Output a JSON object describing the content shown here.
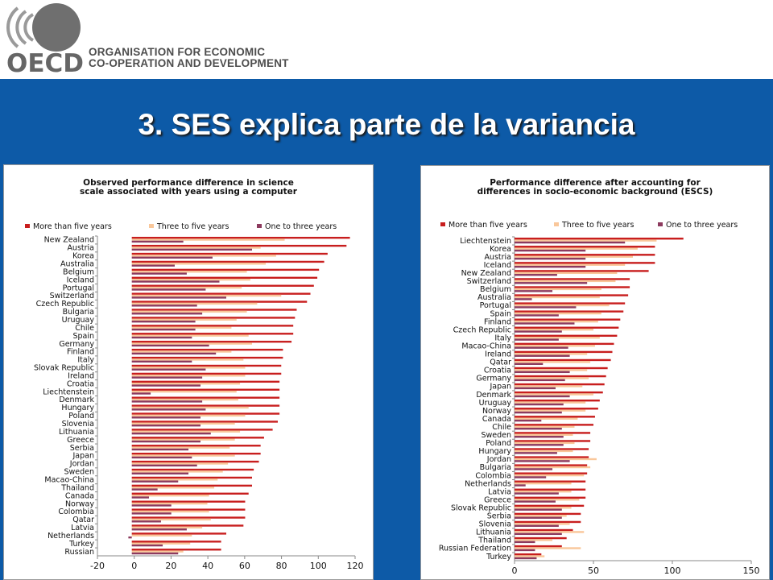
{
  "header": {
    "logo_text": "OECD",
    "org_line1": "ORGANISATION FOR ECONOMIC",
    "org_line2": "CO-OPERATION AND DEVELOPMENT"
  },
  "slide": {
    "title": "3. SES explica parte de la variancia"
  },
  "colors": {
    "more_than_five": "#c81e1e",
    "three_to_five": "#f9c79a",
    "one_to_three": "#8c3a5e",
    "slide_blue": "#0d5aa7"
  },
  "chart_data": [
    {
      "type": "bar",
      "orientation": "horizontal",
      "title_line1": "Observed performance difference in science",
      "title_line2": "scale associated with years using a computer",
      "legend_position": "top",
      "xlim": [
        -20,
        130
      ],
      "xticks": [
        "-20",
        "0",
        "20",
        "40",
        "60",
        "80",
        "100",
        "120"
      ],
      "grid": false,
      "categories": [
        "New Zealand",
        "Austria",
        "Korea",
        "Australia",
        "Belgium",
        "Iceland",
        "Portugal",
        "Switzerland",
        "Czech Republic",
        "Bulgaria",
        "Uruguay",
        "Chile",
        "Spain",
        "Germany",
        "Finland",
        "Italy",
        "Slovak Republic",
        "Ireland",
        "Croatia",
        "Liechtenstein",
        "Denmark",
        "Hungary",
        "Poland",
        "Slovenia",
        "Lithuania",
        "Greece",
        "Serbia",
        "Japan",
        "Jordan",
        "Sweden",
        "Macao-China",
        "Thailand",
        "Canada",
        "Norway",
        "Colombia",
        "Qatar",
        "Latvia",
        "Netherlands",
        "Turkey",
        "Russian"
      ],
      "series": [
        {
          "name": "More than five years",
          "values": [
            127,
            125,
            114,
            112,
            109,
            108,
            106,
            104,
            102,
            96,
            95,
            94,
            94,
            93,
            88,
            88,
            87,
            87,
            86,
            86,
            86,
            86,
            86,
            85,
            82,
            77,
            75,
            75,
            74,
            71,
            70,
            70,
            68,
            66,
            66,
            66,
            65,
            55,
            52,
            52
          ]
        },
        {
          "name": "Three to five years",
          "values": [
            89,
            75,
            84,
            78,
            67,
            69,
            64,
            87,
            73,
            67,
            61,
            58,
            68,
            70,
            58,
            65,
            66,
            66,
            63,
            61,
            62,
            68,
            66,
            60,
            63,
            60,
            57,
            60,
            56,
            53,
            50,
            48,
            45,
            44,
            45,
            46,
            41,
            35,
            34,
            30
          ]
        },
        {
          "name": "One to three years",
          "values": [
            30,
            70,
            47,
            25,
            32,
            51,
            43,
            55,
            38,
            41,
            37,
            37,
            35,
            45,
            49,
            35,
            43,
            41,
            40,
            11,
            41,
            43,
            40,
            40,
            46,
            40,
            33,
            35,
            38,
            33,
            27,
            15,
            10,
            23,
            23,
            17,
            32,
            -2,
            18,
            27
          ]
        }
      ]
    },
    {
      "type": "bar",
      "orientation": "horizontal",
      "title_line1": "Performance difference after accounting for",
      "title_line2": "differences in socio-economic background (ESCS)",
      "legend_position": "top",
      "xlim": [
        0,
        150
      ],
      "xticks": [
        "0",
        "50",
        "100",
        "150"
      ],
      "grid": false,
      "categories": [
        "Liechtenstein",
        "Korea",
        "Austria",
        "Iceland",
        "New Zealand",
        "Switzerland",
        "Belgium",
        "Australia",
        "Portugal",
        "Spain",
        "Finland",
        "Czech Republic",
        "Italy",
        "Macao-China",
        "Ireland",
        "Qatar",
        "Croatia",
        "Germany",
        "Japan",
        "Denmark",
        "Uruguay",
        "Norway",
        "Canada",
        "Chile",
        "Sweden",
        "Poland",
        "Hungary",
        "Jordan",
        "Bulgaria",
        "Colombia",
        "Netherlands",
        "Latvia",
        "Greece",
        "Slovak Republic",
        "Serbia",
        "Slovenia",
        "Lithuania",
        "Thailand",
        "Russian Federation",
        "Turkey"
      ],
      "series": [
        {
          "name": "More than five years",
          "values": [
            107,
            89,
            89,
            89,
            85,
            73,
            73,
            72,
            70,
            69,
            67,
            66,
            65,
            63,
            62,
            61,
            59,
            58,
            57,
            56,
            54,
            53,
            51,
            50,
            48,
            48,
            47,
            47,
            46,
            46,
            45,
            45,
            45,
            44,
            42,
            42,
            37,
            33,
            30,
            17
          ]
        },
        {
          "name": "Three to five years",
          "values": [
            90,
            78,
            75,
            70,
            65,
            64,
            55,
            54,
            60,
            55,
            53,
            50,
            54,
            51,
            46,
            48,
            46,
            47,
            43,
            50,
            45,
            45,
            40,
            38,
            37,
            38,
            37,
            52,
            48,
            44,
            36,
            36,
            41,
            36,
            33,
            35,
            44,
            24,
            42,
            19
          ]
        },
        {
          "name": "One to three years",
          "values": [
            70,
            45,
            45,
            45,
            27,
            46,
            24,
            11,
            39,
            28,
            38,
            30,
            28,
            34,
            35,
            18,
            35,
            32,
            26,
            35,
            31,
            30,
            17,
            30,
            31,
            31,
            27,
            35,
            24,
            20,
            7,
            28,
            26,
            30,
            30,
            28,
            30,
            13,
            13,
            14
          ]
        }
      ]
    }
  ]
}
